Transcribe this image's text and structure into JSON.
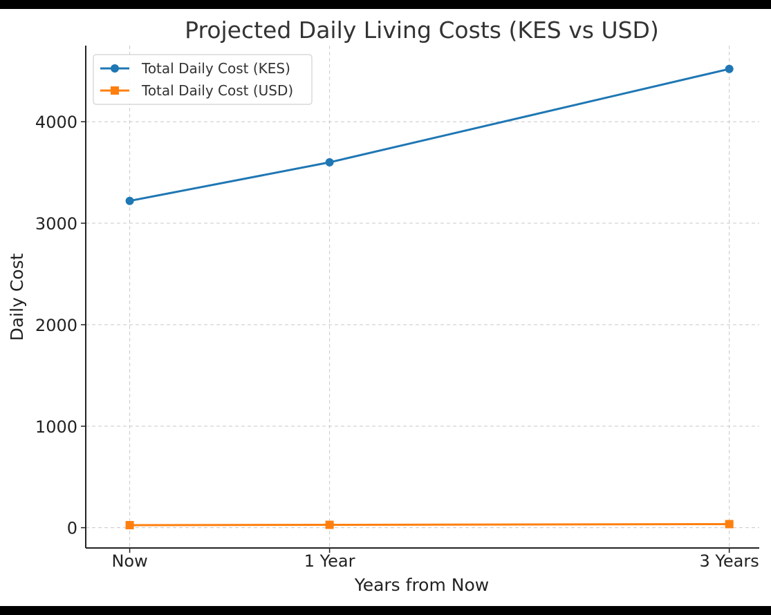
{
  "chart_data": {
    "type": "line",
    "title": "Projected Daily Living Costs (KES vs USD)",
    "xlabel": "Years from Now",
    "ylabel": "Daily Cost",
    "x": [
      0,
      1,
      3
    ],
    "categories": [
      "Now",
      "1 Year",
      "3 Years"
    ],
    "ylim": [
      -200,
      4750
    ],
    "yticks": [
      0,
      1000,
      2000,
      3000,
      4000
    ],
    "grid": true,
    "legend_position": "top-left",
    "series": [
      {
        "name": "Total Daily Cost (KES)",
        "values": [
          3220,
          3600,
          4520
        ],
        "color": "#1f77b4",
        "marker": "circle"
      },
      {
        "name": "Total Daily Cost (USD)",
        "values": [
          25,
          28,
          35
        ],
        "color": "#ff7f0e",
        "marker": "square"
      }
    ]
  }
}
